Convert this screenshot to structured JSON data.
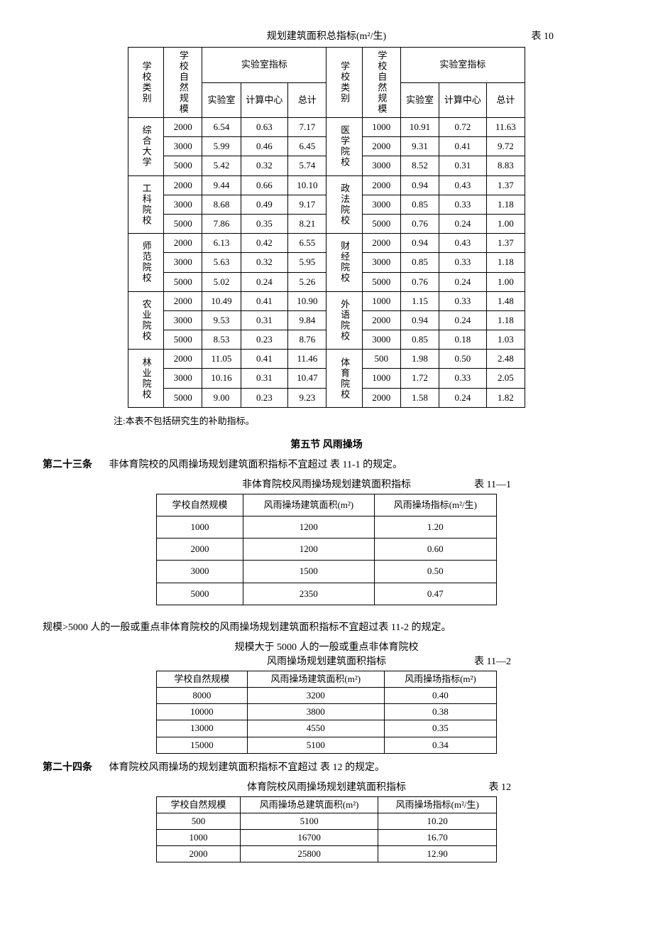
{
  "table10": {
    "title": "规划建筑面积总指标(m²/生)",
    "label": "表 10",
    "headers": {
      "cat": "学校类别",
      "scale": "学校自然规模",
      "labgroup": "实验室指标",
      "lab": "实验室",
      "comp": "计算中心",
      "total": "总计"
    },
    "groups": [
      {
        "name": "综合大学",
        "rows": [
          {
            "scale": "2000",
            "lab": "6.54",
            "comp": "0.63",
            "total": "7.17"
          },
          {
            "scale": "3000",
            "lab": "5.99",
            "comp": "0.46",
            "total": "6.45"
          },
          {
            "scale": "5000",
            "lab": "5.42",
            "comp": "0.32",
            "total": "5.74"
          }
        ]
      },
      {
        "name": "工科院校",
        "rows": [
          {
            "scale": "2000",
            "lab": "9.44",
            "comp": "0.66",
            "total": "10.10"
          },
          {
            "scale": "3000",
            "lab": "8.68",
            "comp": "0.49",
            "total": "9.17"
          },
          {
            "scale": "5000",
            "lab": "7.86",
            "comp": "0.35",
            "total": "8.21"
          }
        ]
      },
      {
        "name": "师范院校",
        "rows": [
          {
            "scale": "2000",
            "lab": "6.13",
            "comp": "0.42",
            "total": "6.55"
          },
          {
            "scale": "3000",
            "lab": "5.63",
            "comp": "0.32",
            "total": "5.95"
          },
          {
            "scale": "5000",
            "lab": "5.02",
            "comp": "0.24",
            "total": "5.26"
          }
        ]
      },
      {
        "name": "农业院校",
        "rows": [
          {
            "scale": "2000",
            "lab": "10.49",
            "comp": "0.41",
            "total": "10.90"
          },
          {
            "scale": "3000",
            "lab": "9.53",
            "comp": "0.31",
            "total": "9.84"
          },
          {
            "scale": "5000",
            "lab": "8.53",
            "comp": "0.23",
            "total": "8.76"
          }
        ]
      },
      {
        "name": "林业院校",
        "rows": [
          {
            "scale": "2000",
            "lab": "11.05",
            "comp": "0.41",
            "total": "11.46"
          },
          {
            "scale": "3000",
            "lab": "10.16",
            "comp": "0.31",
            "total": "10.47"
          },
          {
            "scale": "5000",
            "lab": "9.00",
            "comp": "0.23",
            "total": "9.23"
          }
        ]
      }
    ],
    "groups_right": [
      {
        "name": "医学院校",
        "rows": [
          {
            "scale": "1000",
            "lab": "10.91",
            "comp": "0.72",
            "total": "11.63"
          },
          {
            "scale": "2000",
            "lab": "9.31",
            "comp": "0.41",
            "total": "9.72"
          },
          {
            "scale": "3000",
            "lab": "8.52",
            "comp": "0.31",
            "total": "8.83"
          }
        ]
      },
      {
        "name": "政法院校",
        "rows": [
          {
            "scale": "2000",
            "lab": "0.94",
            "comp": "0.43",
            "total": "1.37"
          },
          {
            "scale": "3000",
            "lab": "0.85",
            "comp": "0.33",
            "total": "1.18"
          },
          {
            "scale": "5000",
            "lab": "0.76",
            "comp": "0.24",
            "total": "1.00"
          }
        ]
      },
      {
        "name": "财经院校",
        "rows": [
          {
            "scale": "2000",
            "lab": "0.94",
            "comp": "0.43",
            "total": "1.37"
          },
          {
            "scale": "3000",
            "lab": "0.85",
            "comp": "0.33",
            "total": "1.18"
          },
          {
            "scale": "5000",
            "lab": "0.76",
            "comp": "0.24",
            "total": "1.00"
          }
        ]
      },
      {
        "name": "外语院校",
        "rows": [
          {
            "scale": "1000",
            "lab": "1.15",
            "comp": "0.33",
            "total": "1.48"
          },
          {
            "scale": "2000",
            "lab": "0.94",
            "comp": "0.24",
            "total": "1.18"
          },
          {
            "scale": "3000",
            "lab": "0.85",
            "comp": "0.18",
            "total": "1.03"
          }
        ]
      },
      {
        "name": "体育院校",
        "rows": [
          {
            "scale": "500",
            "lab": "1.98",
            "comp": "0.50",
            "total": "2.48"
          },
          {
            "scale": "1000",
            "lab": "1.72",
            "comp": "0.33",
            "total": "2.05"
          },
          {
            "scale": "2000",
            "lab": "1.58",
            "comp": "0.24",
            "total": "1.82"
          }
        ]
      }
    ],
    "note": "注:本表不包括研究生的补助指标。"
  },
  "section5": {
    "title": "第五节  风雨操场"
  },
  "article23": {
    "label": "第二十三条",
    "text": "非体育院校的风雨操场规划建筑面积指标不宜超过 表 11-1 的规定。"
  },
  "table11_1": {
    "title": "非体育院校风雨操场规划建筑面积指标",
    "label": "表 11—1",
    "cols": [
      "学校自然规模",
      "风雨操场建筑面积(m²)",
      "风雨操场指标(m²/生)"
    ],
    "rows": [
      [
        "1000",
        "1200",
        "1.20"
      ],
      [
        "2000",
        "1200",
        "0.60"
      ],
      [
        "3000",
        "1500",
        "0.50"
      ],
      [
        "5000",
        "2350",
        "0.47"
      ]
    ]
  },
  "para2": "规模>5000 人的一般或重点非体育院校的风雨操场规划建筑面积指标不宜超过表 11-2  的规定。",
  "table11_2": {
    "title1": "规模大于 5000 人的一般或重点非体育院校",
    "title2": "风雨操场规划建筑面积指标",
    "label": "表 11—2",
    "cols": [
      "学校自然规模",
      "风雨操场建筑面积(m²)",
      "风雨操场指标(m²)"
    ],
    "rows": [
      [
        "8000",
        "3200",
        "0.40"
      ],
      [
        "10000",
        "3800",
        "0.38"
      ],
      [
        "13000",
        "4550",
        "0.35"
      ],
      [
        "15000",
        "5100",
        "0.34"
      ]
    ]
  },
  "article24": {
    "label": "第二十四条",
    "text": "体育院校风雨操场的规划建筑面积指标不宜超过 表 12 的规定。"
  },
  "table12": {
    "title": "体育院校风雨操场规划建筑面积指标",
    "label": "表 12",
    "cols": [
      "学校自然规模",
      "风雨操场总建筑面积(m²)",
      "风雨操场指标(m²/生)"
    ],
    "rows": [
      [
        "500",
        "5100",
        "10.20"
      ],
      [
        "1000",
        "16700",
        "16.70"
      ],
      [
        "2000",
        "25800",
        "12.90"
      ]
    ]
  }
}
